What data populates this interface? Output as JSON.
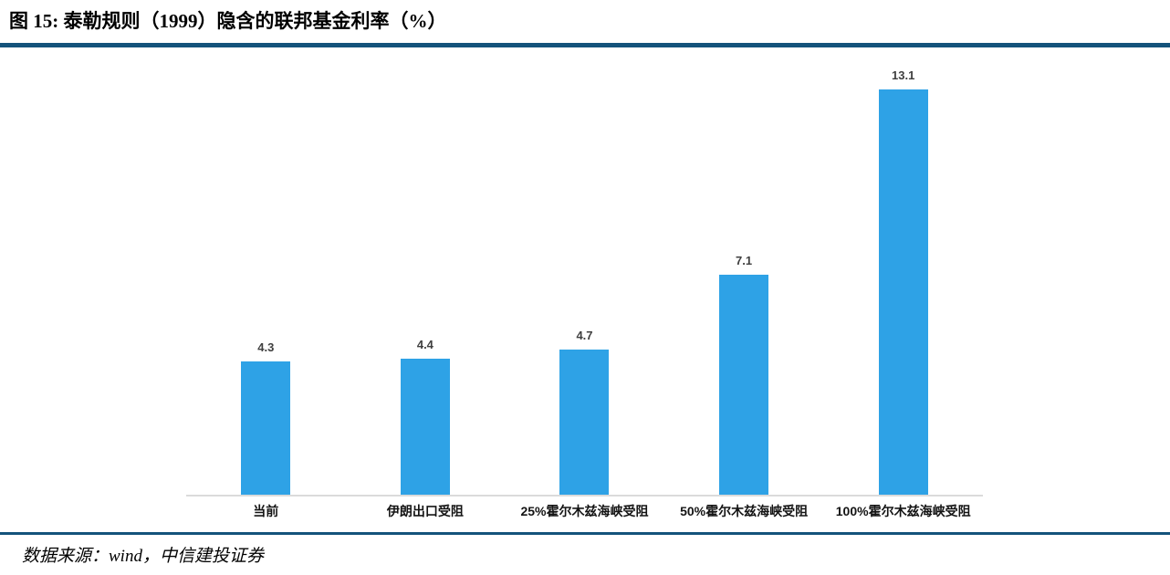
{
  "figure": {
    "title": "图 15: 泰勒规则（1999）隐含的联邦基金利率（%）",
    "source": "数据来源：wind，中信建投证券"
  },
  "chart_data": {
    "type": "bar",
    "title": "泰勒规则（1999）隐含的联邦基金利率（%）",
    "categories": [
      "当前",
      "伊朗出口受阻",
      "25%霍尔木兹海峡受阻",
      "50%霍尔木兹海峡受阻",
      "100%霍尔木兹海峡受阻"
    ],
    "values": [
      4.3,
      4.4,
      4.7,
      7.1,
      13.1
    ],
    "value_labels": [
      "4.3",
      "4.4",
      "4.7",
      "7.1",
      "13.1"
    ],
    "xlabel": "",
    "ylabel": "",
    "ylim": [
      0,
      14
    ],
    "grid": false,
    "legend": false,
    "bar_color": "#2EA2E6"
  },
  "colors": {
    "accent_rule": "#14537B",
    "bar": "#2EA2E6",
    "axis_line": "#DBDBDB",
    "value_label": "#3F3F3F",
    "category_label": "#141414"
  }
}
